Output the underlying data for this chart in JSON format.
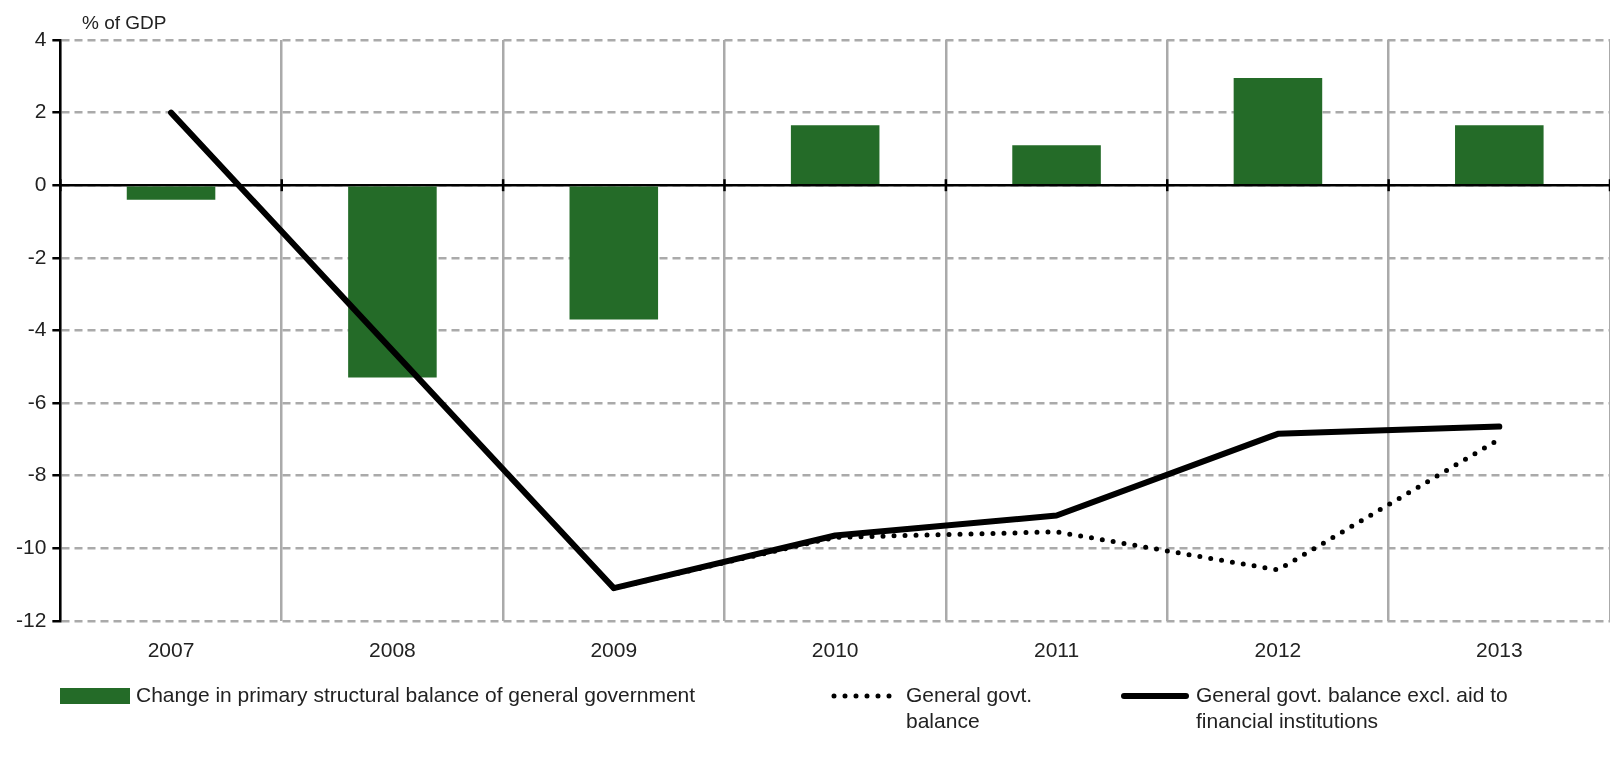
{
  "chart_data": {
    "type": "bar",
    "ylabel": "% of GDP",
    "categories": [
      "2007",
      "2008",
      "2009",
      "2010",
      "2011",
      "2012",
      "2013"
    ],
    "series": [
      {
        "name": "Change in primary structural balance of general government",
        "color": "#246b28",
        "values": [
          -0.4,
          -5.3,
          -3.7,
          1.65,
          1.1,
          2.95,
          1.65
        ]
      },
      {
        "name": "General govt. balance",
        "type": "line",
        "line_style": "dotted",
        "color": "#000000",
        "values": [
          null,
          null,
          -11.1,
          -9.7,
          -9.55,
          -10.6,
          -7.0
        ]
      },
      {
        "name": "General govt. balance excl. aid to financial institutions",
        "type": "line",
        "line_style": "solid",
        "color": "#000000",
        "values": [
          2.0,
          -4.55,
          -11.1,
          -9.65,
          -9.1,
          -6.85,
          -6.65
        ]
      }
    ],
    "ylim": [
      -12,
      4
    ],
    "yticks": [
      -12,
      -10,
      -8,
      -6,
      -4,
      -2,
      0,
      2,
      4
    ],
    "grid": true,
    "legend": "bottom",
    "marker": "none"
  }
}
